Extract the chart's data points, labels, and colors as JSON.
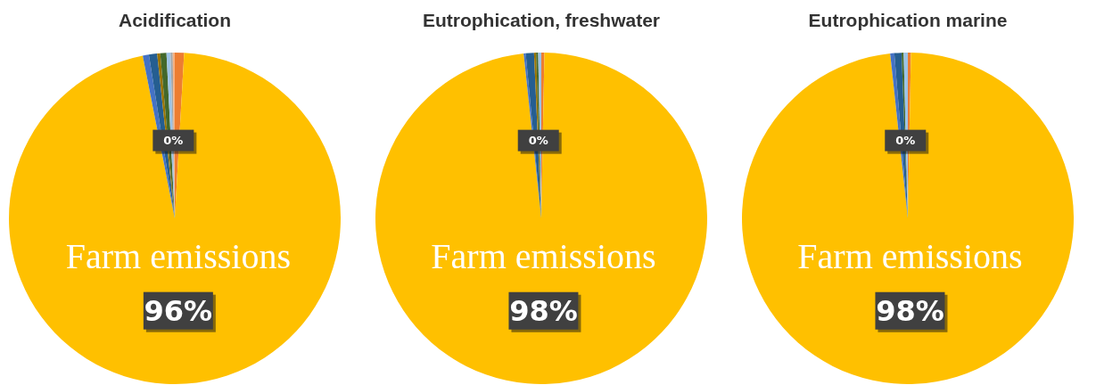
{
  "chart_data": [
    {
      "type": "pie",
      "title": "Acidification",
      "categories": [
        null,
        "Farm emissions",
        null,
        null,
        null,
        null,
        null,
        null,
        null
      ],
      "values": [
        0.9,
        96,
        0.6,
        0.8,
        0.3,
        0.6,
        0.4,
        0.2,
        0.2
      ],
      "colors": [
        "#ed7d31",
        "#ffc000",
        "#4472c4",
        "#255e91",
        "#997300",
        "#43682b",
        "#9dc3e6",
        "#a5a5a5",
        "#f4b183"
      ],
      "value_labels": [
        null,
        "96%",
        null,
        null,
        null,
        null,
        null,
        "0%",
        null
      ]
    },
    {
      "type": "pie",
      "title": "Eutrophication, freshwater",
      "categories": [
        null,
        "Farm emissions",
        null,
        null,
        null,
        null,
        null
      ],
      "values": [
        0.3,
        98,
        0.2,
        0.8,
        0.2,
        0.2,
        0.3
      ],
      "colors": [
        "#ed7d31",
        "#ffc000",
        "#4472c4",
        "#255e91",
        "#997300",
        "#43682b",
        "#9dc3e6"
      ],
      "value_labels": [
        null,
        "98%",
        null,
        null,
        "0%",
        null,
        null
      ]
    },
    {
      "type": "pie",
      "title": "Eutrophication marine",
      "categories": [
        null,
        "Farm emissions",
        null,
        null,
        null,
        null
      ],
      "values": [
        0.3,
        98,
        0.4,
        0.7,
        0.2,
        0.4
      ],
      "colors": [
        "#ed7d31",
        "#ffc000",
        "#4472c4",
        "#255e91",
        "#43682b",
        "#9dc3e6"
      ],
      "value_labels": [
        null,
        "98%",
        null,
        null,
        "0%",
        null
      ]
    }
  ]
}
